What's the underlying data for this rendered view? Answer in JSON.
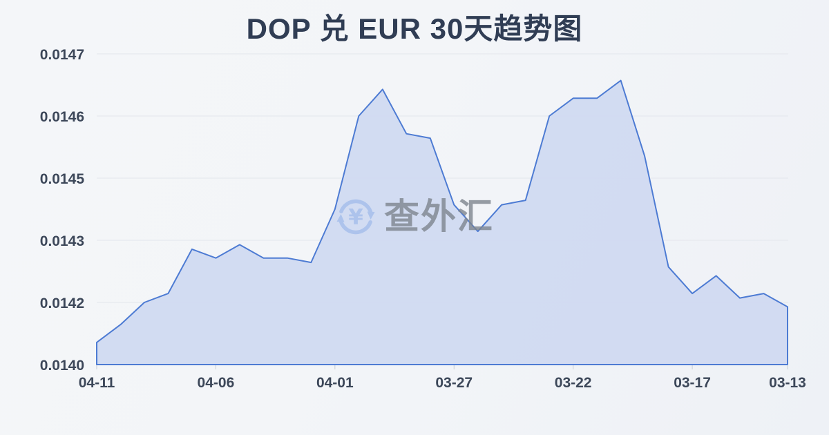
{
  "title": "DOP 兑 EUR 30天趋势图",
  "watermark": {
    "icon": "currency-refresh-icon",
    "text": "查外汇"
  },
  "colors": {
    "line": "#4d7bd3",
    "fill": "#cfd9f1",
    "grid": "#e3e6ec",
    "tick": "#c6ccd4",
    "axis_text": "#3c4759",
    "title_text": "#303d54",
    "watermark_text": "#7e858f",
    "watermark_icon": "#a4beeb",
    "background": "#f3f5f9"
  },
  "chart_data": {
    "type": "area",
    "title": "DOP 兑 EUR 30天趋势图",
    "xlabel": "",
    "ylabel": "",
    "x": [
      "04-11",
      "04-10",
      "04-09",
      "04-08",
      "04-07",
      "04-06",
      "04-05",
      "04-04",
      "04-03",
      "04-02",
      "04-01",
      "03-31",
      "03-30",
      "03-29",
      "03-28",
      "03-27",
      "03-26",
      "03-25",
      "03-24",
      "03-23",
      "03-22",
      "03-21",
      "03-20",
      "03-19",
      "03-18",
      "03-17",
      "03-16",
      "03-15",
      "03-14",
      "03-13"
    ],
    "values": [
      0.01405,
      0.01409,
      0.01414,
      0.01416,
      0.01426,
      0.01424,
      0.01427,
      0.01424,
      0.01424,
      0.01423,
      0.01435,
      0.01456,
      0.01462,
      0.01452,
      0.01451,
      0.01436,
      0.0143,
      0.01436,
      0.01437,
      0.01456,
      0.0146,
      0.0146,
      0.01464,
      0.01447,
      0.01422,
      0.01416,
      0.0142,
      0.01415,
      0.01416,
      0.01413
    ],
    "series_name": "DOP/EUR",
    "ylim": [
      0.014,
      0.0147
    ],
    "y_tick_labels": [
      "0.0147",
      "0.0146",
      "0.0145",
      "0.0143",
      "0.0142",
      "0.0140"
    ],
    "x_ticks": [
      {
        "index": 0,
        "label": "04-11"
      },
      {
        "index": 5,
        "label": "04-06"
      },
      {
        "index": 10,
        "label": "04-01"
      },
      {
        "index": 15,
        "label": "03-27"
      },
      {
        "index": 20,
        "label": "03-22"
      },
      {
        "index": 25,
        "label": "03-17"
      },
      {
        "index": 29,
        "label": "03-13"
      }
    ],
    "grid": true,
    "legend": false,
    "x_direction": "dates-descend-left-to-right"
  }
}
